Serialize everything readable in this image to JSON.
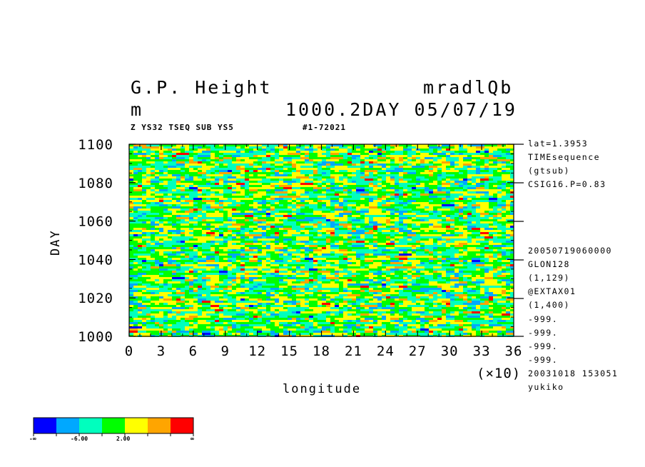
{
  "header": {
    "title": "G.P. Height",
    "dataset": "mradlQb",
    "units": "m",
    "time_info": "1000.2DAY 05/07/19",
    "sub_left": "Z YS32 TSEQ SUB YS5",
    "sub_mid": "#1-72021"
  },
  "chart_data": {
    "type": "heatmap",
    "xlabel": "longitude",
    "ylabel": "DAY",
    "x_multiplier": "(×10)",
    "xlim": [
      0,
      36
    ],
    "ylim": [
      1000,
      1100
    ],
    "x_ticks": [
      "0",
      "3",
      "6",
      "9",
      "12",
      "15",
      "18",
      "21",
      "24",
      "27",
      "30",
      "33",
      "36"
    ],
    "y_ticks": [
      "1000",
      "1020",
      "1040",
      "1060",
      "1080",
      "1100"
    ],
    "colorbar": {
      "colors": [
        "#0000ff",
        "#00a8ff",
        "#00ffbe",
        "#00ff00",
        "#ffff00",
        "#ffa500",
        "#ff0000"
      ],
      "labels": [
        "-∞",
        "-6.00",
        "2.00",
        "∞"
      ]
    }
  },
  "side_info": {
    "top": [
      "lat=1.3953",
      "TIMEsequence",
      "(gtsub)",
      "CSIG16.P=0.83"
    ],
    "bottom": [
      "20050719060000",
      "GLON128",
      "(1,129)",
      "@EXTAX01",
      "(1,400)",
      "-999.",
      "-999.",
      "-999.",
      "-999.",
      "20031018 153051",
      "yukiko"
    ]
  }
}
